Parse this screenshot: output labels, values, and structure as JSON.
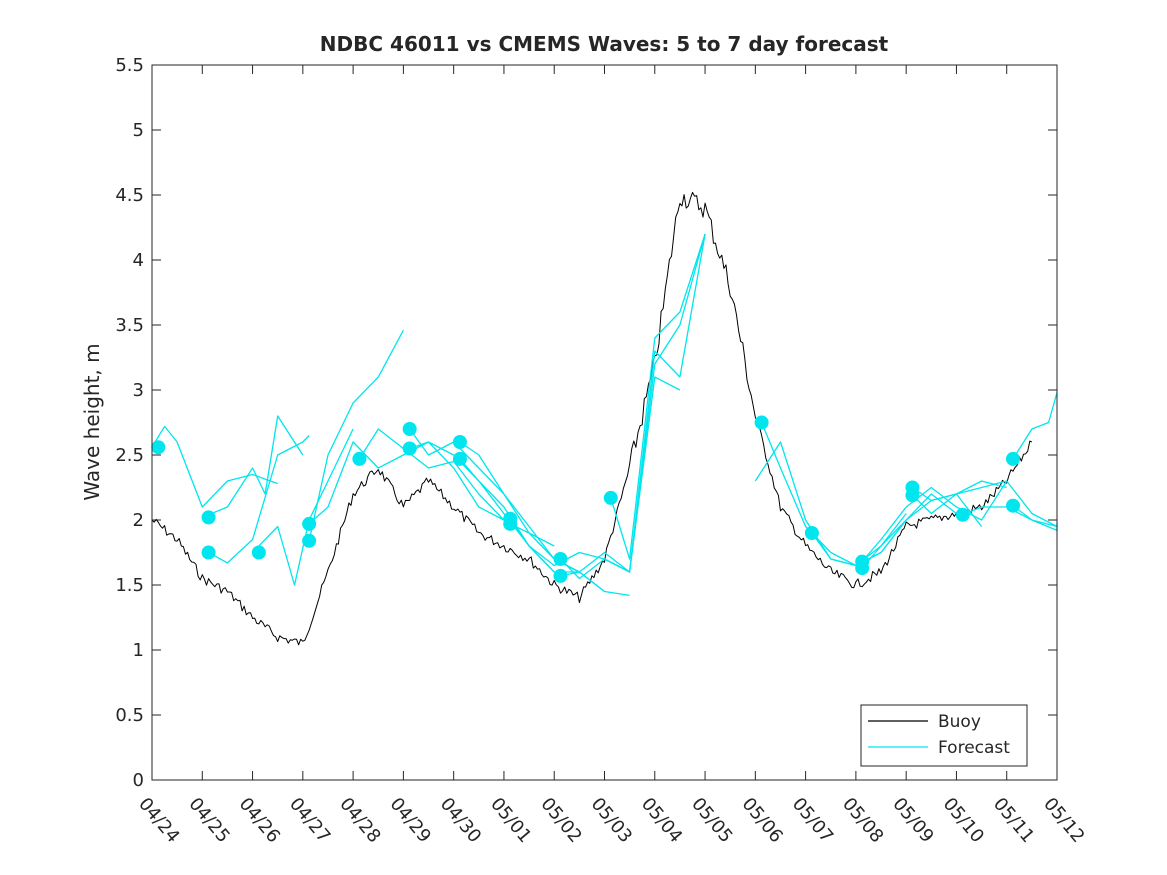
{
  "chart_data": {
    "type": "line",
    "title": "NDBC 46011 vs CMEMS Waves: 5 to 7 day forecast",
    "xlabel": "",
    "ylabel": "Wave height, m",
    "xlim": [
      "04/24",
      "05/12"
    ],
    "ylim": [
      0,
      5.5
    ],
    "yticks": [
      0,
      0.5,
      1,
      1.5,
      2,
      2.5,
      3,
      3.5,
      4,
      4.5,
      5,
      5.5
    ],
    "xtick_labels": [
      "04/24",
      "04/25",
      "04/26",
      "04/27",
      "04/28",
      "04/29",
      "04/30",
      "05/01",
      "05/02",
      "05/03",
      "05/04",
      "05/05",
      "05/06",
      "05/07",
      "05/08",
      "05/09",
      "05/10",
      "05/11",
      "05/12"
    ],
    "legend": {
      "location": "bottom-right",
      "entries": [
        "Buoy",
        "Forecast"
      ]
    },
    "colors": {
      "buoy": "#000000",
      "forecast": "#00e5ee",
      "axis": "#262626"
    },
    "series": [
      {
        "name": "Buoy",
        "role": "buoy",
        "x": [
          "04/24",
          "04/24 12:00",
          "04/25",
          "04/25 12:00",
          "04/26",
          "04/26 12:00",
          "04/27",
          "04/27 12:00",
          "04/28",
          "04/28 12:00",
          "04/29",
          "04/29 12:00",
          "04/30",
          "04/30 12:00",
          "05/01",
          "05/01 12:00",
          "05/02",
          "05/02 12:00",
          "05/03",
          "05/03 12:00",
          "05/04",
          "05/04 12:00",
          "05/05",
          "05/05 12:00",
          "05/06",
          "05/06 12:00",
          "05/07",
          "05/07 12:00",
          "05/08",
          "05/08 12:00",
          "05/09",
          "05/09 12:00",
          "05/10",
          "05/10 12:00",
          "05/11",
          "05/11 12:00"
        ],
        "y": [
          2.0,
          1.85,
          1.55,
          1.45,
          1.25,
          1.1,
          1.05,
          1.6,
          2.2,
          2.4,
          2.1,
          2.3,
          2.1,
          1.9,
          1.8,
          1.7,
          1.5,
          1.4,
          1.7,
          2.4,
          3.2,
          4.5,
          4.4,
          3.8,
          2.8,
          2.1,
          1.8,
          1.6,
          1.5,
          1.6,
          1.95,
          2.0,
          2.05,
          2.1,
          2.3,
          2.6
        ]
      },
      {
        "name": "Forecast",
        "role": "forecast",
        "marker": {
          "x": "04/24 03:00",
          "y": 2.56
        },
        "x": [
          "04/24",
          "04/24 06:00",
          "04/24 12:00",
          "04/25",
          "04/25 12:00",
          "04/26",
          "04/26 12:00"
        ],
        "y": [
          2.56,
          2.72,
          2.6,
          2.1,
          2.3,
          2.35,
          2.28
        ]
      },
      {
        "role": "forecast",
        "marker": {
          "x": "04/25 03:00",
          "y": 2.02
        },
        "x": [
          "04/25",
          "04/25 12:00",
          "04/26",
          "04/26 06:00",
          "04/26 12:00",
          "04/27"
        ],
        "y": [
          2.02,
          2.1,
          2.4,
          2.2,
          2.8,
          2.5
        ]
      },
      {
        "role": "forecast",
        "marker": {
          "x": "04/25 03:00",
          "y": 1.75
        },
        "x": [
          "04/25 03:00",
          "04/25 12:00",
          "04/26",
          "04/26 12:00",
          "04/27",
          "04/27 03:00"
        ],
        "y": [
          1.75,
          1.67,
          1.85,
          2.5,
          2.6,
          2.65
        ]
      },
      {
        "role": "forecast",
        "marker": {
          "x": "04/26 03:00",
          "y": 1.75
        },
        "x": [
          "04/26",
          "04/26 12:00",
          "04/26 20:00",
          "04/27 03:00",
          "04/27 12:00",
          "04/28"
        ],
        "y": [
          1.75,
          1.95,
          1.5,
          2.0,
          2.3,
          2.7
        ]
      },
      {
        "role": "forecast",
        "marker": {
          "x": "04/27 03:00",
          "y": 1.97
        },
        "x": [
          "04/27 03:00",
          "04/27 12:00",
          "04/28",
          "04/28 12:00",
          "04/29",
          "04/29 12:00",
          "04/30",
          "04/30 12:00",
          "05/01"
        ],
        "y": [
          1.97,
          2.1,
          2.6,
          2.4,
          2.5,
          2.6,
          2.4,
          2.1,
          2.0
        ]
      },
      {
        "role": "forecast",
        "marker": {
          "x": "04/27 03:00",
          "y": 1.84
        },
        "x": [
          "04/27 03:00",
          "04/27 12:00",
          "04/28",
          "04/28 12:00",
          "04/29"
        ],
        "y": [
          1.84,
          2.5,
          2.9,
          3.1,
          3.46
        ]
      },
      {
        "role": "forecast",
        "marker": {
          "x": "04/28 03:00",
          "y": 2.47
        },
        "x": [
          "04/28 03:00",
          "04/28 12:00",
          "04/29",
          "04/29 12:00",
          "04/30",
          "04/30 12:00",
          "05/01"
        ],
        "y": [
          2.47,
          2.7,
          2.55,
          2.4,
          2.45,
          2.2,
          2.0
        ]
      },
      {
        "role": "forecast",
        "marker": {
          "x": "04/29 03:00",
          "y": 2.7
        },
        "x": [
          "04/29 03:00",
          "04/29 12:00",
          "04/30",
          "04/30 12:00",
          "05/01",
          "05/01 12:00",
          "05/02"
        ],
        "y": [
          2.7,
          2.5,
          2.6,
          2.4,
          2.2,
          1.9,
          1.8
        ]
      },
      {
        "role": "forecast",
        "marker": {
          "x": "04/29 03:00",
          "y": 2.55
        },
        "x": [
          "04/29 03:00",
          "04/29 12:00",
          "04/30",
          "04/30 12:00",
          "05/01",
          "05/01 12:00",
          "05/02"
        ],
        "y": [
          2.55,
          2.6,
          2.5,
          2.3,
          2.1,
          1.8,
          1.6
        ]
      },
      {
        "role": "forecast",
        "marker": {
          "x": "04/30 03:00",
          "y": 2.6
        },
        "x": [
          "04/30 03:00",
          "04/30 12:00",
          "05/01",
          "05/01 12:00",
          "05/02",
          "05/02 12:00",
          "05/03"
        ],
        "y": [
          2.6,
          2.5,
          2.2,
          1.95,
          1.7,
          1.6,
          1.45
        ]
      },
      {
        "role": "forecast",
        "marker": {
          "x": "04/30 03:00",
          "y": 2.47
        },
        "x": [
          "04/30 03:00",
          "04/30 12:00",
          "05/01",
          "05/01 12:00",
          "05/02",
          "05/02 12:00"
        ],
        "y": [
          2.47,
          2.3,
          2.05,
          1.8,
          1.6,
          1.6
        ]
      },
      {
        "role": "forecast",
        "marker": {
          "x": "05/01 03:00",
          "y": 2.01
        },
        "x": [
          "05/01 03:00",
          "05/01 12:00",
          "05/02",
          "05/02 12:00",
          "05/03",
          "05/03 12:00",
          "05/04",
          "05/04 12:00"
        ],
        "y": [
          2.01,
          1.8,
          1.65,
          1.75,
          1.7,
          1.6,
          3.1,
          3.0
        ]
      },
      {
        "role": "forecast",
        "marker": {
          "x": "05/01 03:00",
          "y": 1.97
        },
        "x": [
          "05/01 03:00",
          "05/01 12:00",
          "05/02",
          "05/02 12:00",
          "05/03",
          "05/03 12:00"
        ],
        "y": [
          1.97,
          1.9,
          1.7,
          1.6,
          1.45,
          1.42
        ]
      },
      {
        "role": "forecast",
        "marker": {
          "x": "05/02 03:00",
          "y": 1.7
        },
        "x": [
          "05/02 03:00",
          "05/02 12:00",
          "05/03",
          "05/03 12:00",
          "05/04",
          "05/04 12:00",
          "05/05"
        ],
        "y": [
          1.7,
          1.55,
          1.7,
          1.6,
          3.3,
          3.1,
          4.2
        ]
      },
      {
        "role": "forecast",
        "marker": {
          "x": "05/02 03:00",
          "y": 1.57
        },
        "x": [
          "05/02 03:00",
          "05/02 12:00",
          "05/03",
          "05/03 12:00",
          "05/04",
          "05/04 12:00",
          "05/05"
        ],
        "y": [
          1.57,
          1.6,
          1.75,
          1.6,
          3.2,
          3.5,
          4.2
        ]
      },
      {
        "role": "forecast",
        "marker": {
          "x": "05/03 03:00",
          "y": 2.17
        },
        "x": [
          "05/03 03:00",
          "05/03 12:00",
          "05/04",
          "05/04 12:00",
          "05/05"
        ],
        "y": [
          2.17,
          1.7,
          3.4,
          3.6,
          4.2
        ]
      },
      {
        "role": "forecast",
        "marker": {
          "x": "05/06 03:00",
          "y": 2.75
        },
        "x": [
          "05/06 03:00",
          "05/06 12:00",
          "05/07",
          "05/07 12:00",
          "05/08",
          "05/08 12:00",
          "05/09"
        ],
        "y": [
          2.75,
          2.4,
          1.95,
          1.75,
          1.65,
          1.75,
          2.0
        ]
      },
      {
        "role": "forecast",
        "x": [
          "05/06",
          "05/06 12:00",
          "05/07",
          "05/07 12:00",
          "05/08",
          "05/08 12:00",
          "05/09"
        ],
        "y": [
          2.3,
          2.6,
          2.0,
          1.7,
          1.65,
          1.8,
          2.05
        ]
      },
      {
        "role": "forecast",
        "marker": {
          "x": "05/07 03:00",
          "y": 1.9
        },
        "x": [
          "05/07 03:00",
          "05/07 12:00",
          "05/08",
          "05/08 12:00",
          "05/09",
          "05/09 12:00",
          "05/10"
        ],
        "y": [
          1.9,
          1.7,
          1.65,
          1.75,
          2.0,
          2.2,
          2.05
        ]
      },
      {
        "role": "forecast",
        "marker": {
          "x": "05/08 03:00",
          "y": 1.68
        },
        "x": [
          "05/08 03:00",
          "05/08 12:00",
          "05/09",
          "05/09 12:00",
          "05/10",
          "05/10 12:00",
          "05/11"
        ],
        "y": [
          1.68,
          1.85,
          2.1,
          2.25,
          2.1,
          2.0,
          2.3
        ]
      },
      {
        "role": "forecast",
        "marker": {
          "x": "05/08 03:00",
          "y": 1.63
        },
        "x": [
          "05/08 03:00",
          "05/08 12:00",
          "05/09",
          "05/09 12:00",
          "05/10",
          "05/10 12:00"
        ],
        "y": [
          1.63,
          1.8,
          2.0,
          2.15,
          2.2,
          1.95
        ]
      },
      {
        "role": "forecast",
        "marker": {
          "x": "05/09 03:00",
          "y": 2.25
        },
        "x": [
          "05/09 03:00",
          "05/09 12:00",
          "05/10",
          "05/10 12:00",
          "05/11",
          "05/11 12:00",
          "05/12"
        ],
        "y": [
          2.25,
          2.15,
          2.2,
          2.25,
          2.3,
          2.05,
          1.95
        ]
      },
      {
        "role": "forecast",
        "marker": {
          "x": "05/09 03:00",
          "y": 2.19
        },
        "x": [
          "05/09 03:00",
          "05/09 12:00",
          "05/10",
          "05/10 12:00",
          "05/11"
        ],
        "y": [
          2.19,
          2.05,
          2.2,
          2.3,
          2.25
        ]
      },
      {
        "role": "forecast",
        "marker": {
          "x": "05/10 03:00",
          "y": 2.04
        },
        "x": [
          "05/10 03:00",
          "05/10 12:00",
          "05/11",
          "05/11 12:00",
          "05/12",
          "05/12"
        ],
        "y": [
          2.04,
          2.1,
          2.1,
          2.0,
          1.92,
          1.98
        ]
      },
      {
        "role": "forecast",
        "marker": {
          "x": "05/11 03:00",
          "y": 2.47
        },
        "x": [
          "05/11 03:00",
          "05/11 12:00",
          "05/11 20:00",
          "05/12"
        ],
        "y": [
          2.47,
          2.7,
          2.75,
          2.98
        ]
      },
      {
        "role": "forecast",
        "marker": {
          "x": "05/11 03:00",
          "y": 2.11
        },
        "x": [
          "05/11 03:00",
          "05/11 12:00",
          "05/12"
        ],
        "y": [
          2.11,
          2.0,
          1.95
        ]
      }
    ]
  }
}
